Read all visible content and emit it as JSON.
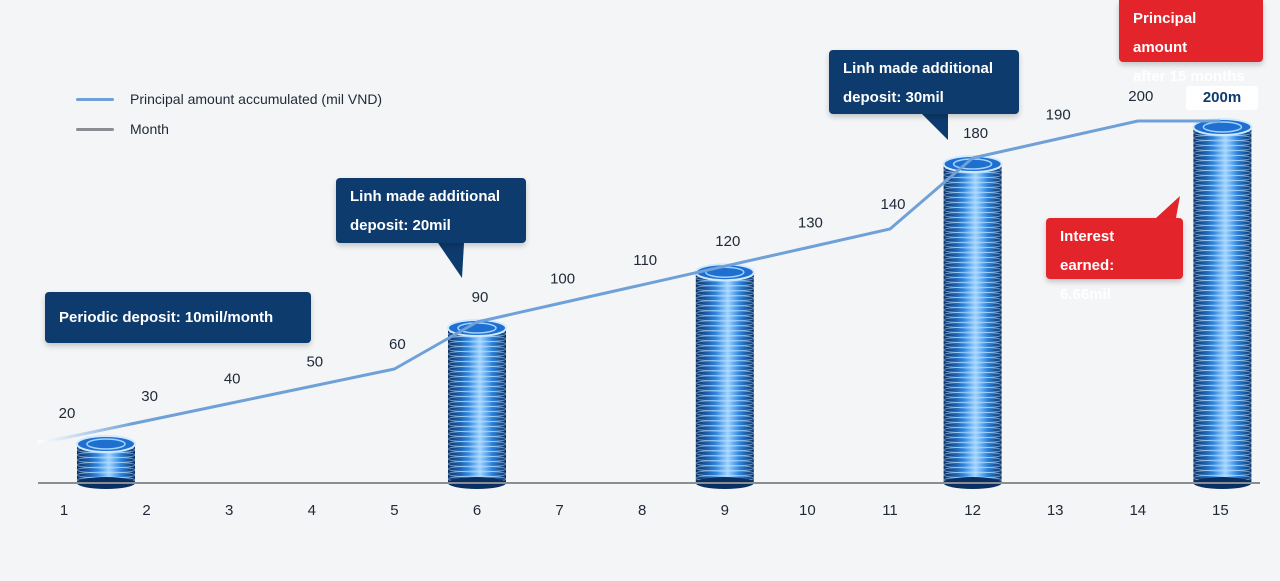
{
  "legend": {
    "items": [
      {
        "label": "Principal amount accumulated (mil VND)",
        "color": "#6fa1d8"
      },
      {
        "label": "Month",
        "color": "#8a8d91"
      }
    ]
  },
  "callouts": {
    "periodic_deposit": "Periodic deposit: 10mil/month",
    "deposit_20_line1": "Linh made additional",
    "deposit_20_line2": "deposit: 20mil",
    "deposit_30_line1": "Linh made additional",
    "deposit_30_line2": "deposit: 30mil",
    "final_line1": "Principal amount",
    "final_line2": "after 15 months",
    "interest_line1": "Interest earned:",
    "interest_line2": "6.66mil"
  },
  "final_badge": "200m",
  "colors": {
    "navy": "#0d3b6e",
    "red": "#e3242b",
    "line": "#6fa1d8",
    "axis": "#8a8d91",
    "coin": "#1f6fd1"
  },
  "chart_data": {
    "type": "line",
    "x": [
      1,
      2,
      3,
      4,
      5,
      6,
      7,
      8,
      9,
      10,
      11,
      12,
      13,
      14,
      15
    ],
    "series": [
      {
        "name": "Principal amount accumulated (mil VND)",
        "values": [
          20,
          30,
          40,
          50,
          60,
          90,
          100,
          110,
          120,
          130,
          140,
          180,
          190,
          200,
          200
        ]
      }
    ],
    "data_labels": [
      "20",
      "30",
      "40",
      "50",
      "60",
      "90",
      "100",
      "110",
      "120",
      "130",
      "140",
      "180",
      "190",
      "200",
      ""
    ],
    "coin_stacks": [
      {
        "month": 1,
        "value": 20
      },
      {
        "month": 6,
        "value": 90
      },
      {
        "month": 9,
        "value": 120
      },
      {
        "month": 12,
        "value": 180
      },
      {
        "month": 15,
        "value": 200
      }
    ],
    "xlabel": "Month",
    "ylim": [
      0,
      200
    ],
    "grid": false
  }
}
